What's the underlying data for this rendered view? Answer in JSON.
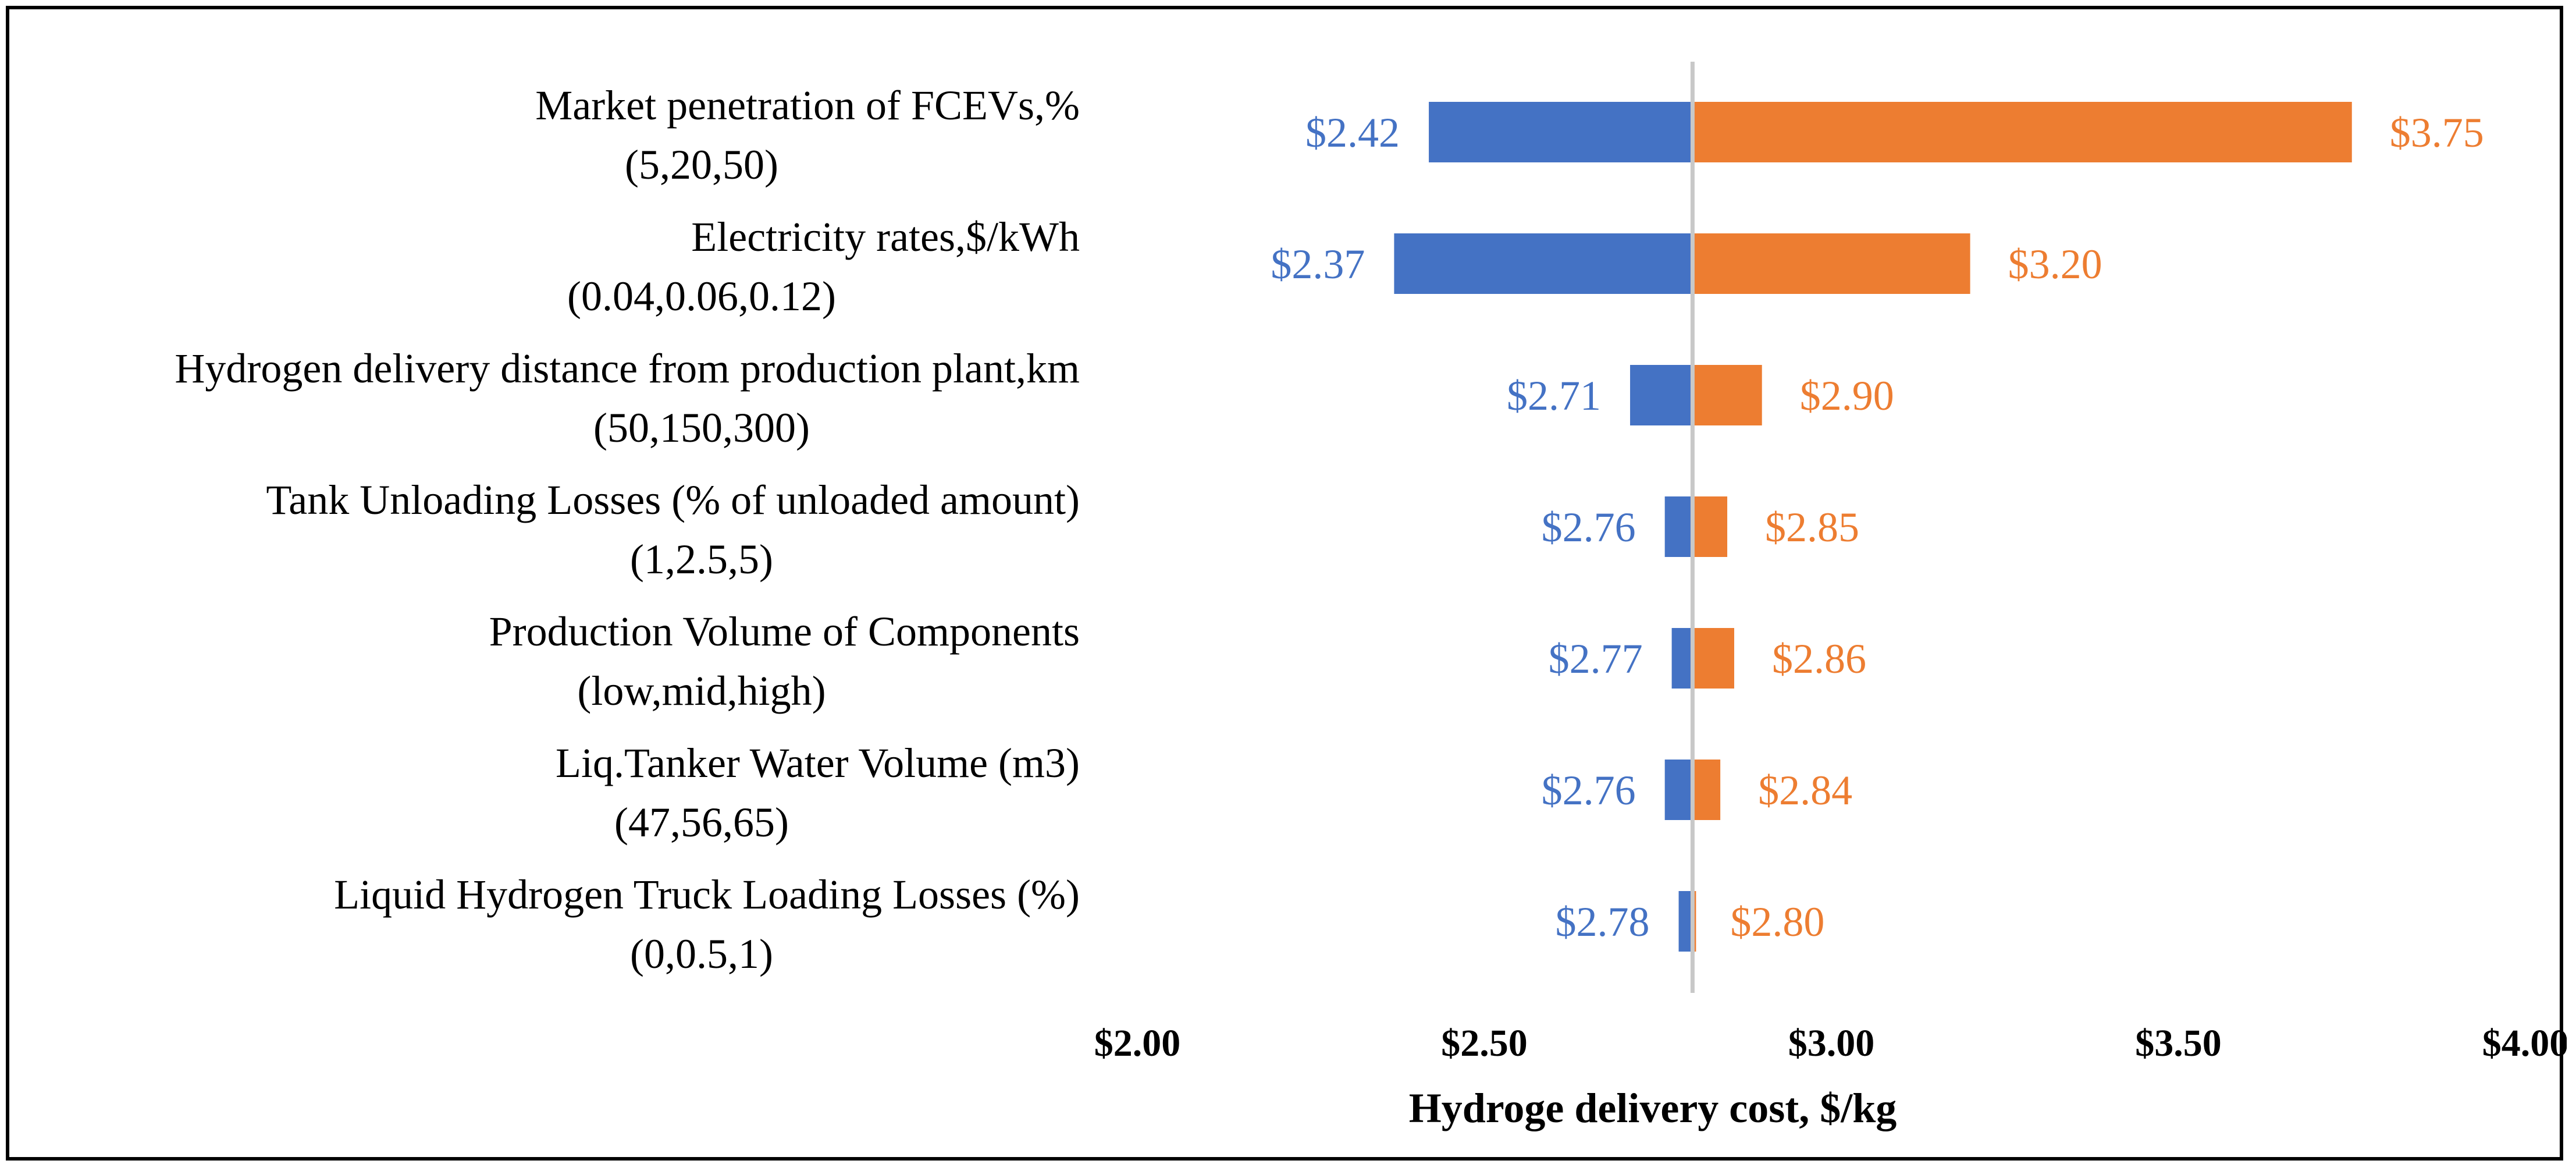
{
  "chart_data": {
    "type": "bar",
    "orientation": "horizontal",
    "subtype": "tornado",
    "title": "",
    "xlabel": "Hydroge delivery cost, $/kg",
    "ylabel": "",
    "xlim": [
      2.0,
      4.0
    ],
    "x_ticks": [
      2.0,
      2.5,
      3.0,
      3.5,
      4.0
    ],
    "x_tick_labels": [
      "$2.00",
      "$2.50",
      "$3.00",
      "$3.50",
      "$4.00"
    ],
    "baseline": 2.8,
    "grid": false,
    "legend": "none",
    "categories": [
      {
        "line1": "Market penetration of FCEVs,%",
        "line2": "(5,20,50)"
      },
      {
        "line1": "Electricity rates,$/kWh",
        "line2": "(0.04,0.06,0.12)"
      },
      {
        "line1": "Hydrogen delivery distance from production plant,km",
        "line2": "(50,150,300)"
      },
      {
        "line1": "Tank Unloading Losses (% of unloaded amount)",
        "line2": "(1,2.5,5)"
      },
      {
        "line1": "Production Volume of Components",
        "line2": "(low,mid,high)"
      },
      {
        "line1": "Liq.Tanker Water Volume (m3)",
        "line2": "(47,56,65)"
      },
      {
        "line1": "Liquid Hydrogen Truck Loading Losses (%)",
        "line2": "(0,0.5,1)"
      }
    ],
    "series": [
      {
        "name": "Low",
        "color": "#4472C4",
        "values": [
          2.42,
          2.37,
          2.71,
          2.76,
          2.77,
          2.76,
          2.78
        ],
        "labels": [
          "$2.42",
          "$2.37",
          "$2.71",
          "$2.76",
          "$2.77",
          "$2.76",
          "$2.78"
        ]
      },
      {
        "name": "High",
        "color": "#ED7D31",
        "values": [
          3.75,
          3.2,
          2.9,
          2.85,
          2.86,
          2.84,
          2.8
        ],
        "labels": [
          "$3.75",
          "$3.20",
          "$2.90",
          "$2.85",
          "$2.86",
          "$2.84",
          "$2.80"
        ]
      }
    ]
  },
  "colors": {
    "low_bar": "#4472C4",
    "high_bar": "#ED7D31",
    "low_text": "#4472C4",
    "high_text": "#ED7D31",
    "baseline": "#C8C8C8"
  }
}
